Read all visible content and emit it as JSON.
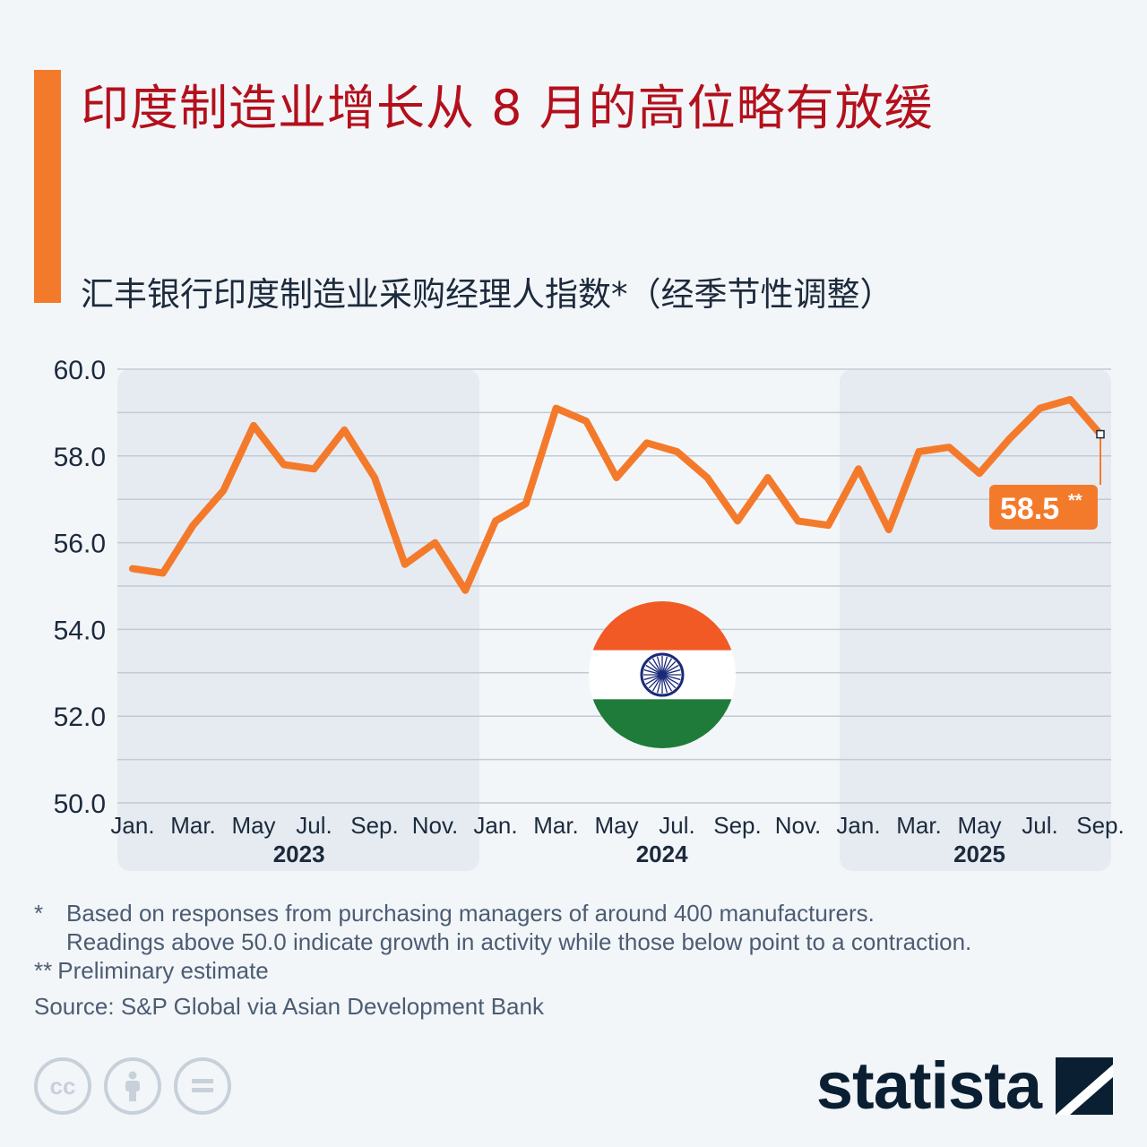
{
  "header": {
    "title": "印度制造业增长从 8 月的高位略有放缓",
    "subtitle": "汇丰银行印度制造业采购经理人指数*（经季节性调整）"
  },
  "chart_data": {
    "type": "line",
    "title": "印度制造业增长从 8 月的高位略有放缓",
    "subtitle": "汇丰银行印度制造业采购经理人指数*（经季节性调整）",
    "ylim": [
      50,
      60
    ],
    "y_ticks": [
      "50.0",
      "52.0",
      "54.0",
      "56.0",
      "58.0",
      "60.0"
    ],
    "grid": true,
    "x_tick_labels": [
      "Jan.",
      "Mar.",
      "May",
      "Jul.",
      "Sep.",
      "Nov.",
      "Jan.",
      "Mar.",
      "May",
      "Jul.",
      "Sep.",
      "Nov.",
      "Jan.",
      "Mar.",
      "May",
      "Jul.",
      "Sep."
    ],
    "years": [
      "2023",
      "2024",
      "2025"
    ],
    "x": [
      "2023-01",
      "2023-02",
      "2023-03",
      "2023-04",
      "2023-05",
      "2023-06",
      "2023-07",
      "2023-08",
      "2023-09",
      "2023-10",
      "2023-11",
      "2023-12",
      "2024-01",
      "2024-02",
      "2024-03",
      "2024-04",
      "2024-05",
      "2024-06",
      "2024-07",
      "2024-08",
      "2024-09",
      "2024-10",
      "2024-11",
      "2024-12",
      "2025-01",
      "2025-02",
      "2025-03",
      "2025-04",
      "2025-05",
      "2025-06",
      "2025-07",
      "2025-08",
      "2025-09"
    ],
    "series": [
      {
        "values": [
          55.4,
          55.3,
          56.4,
          57.2,
          58.7,
          57.8,
          57.7,
          58.6,
          57.5,
          55.5,
          56.0,
          54.9,
          56.5,
          56.9,
          59.1,
          58.8,
          57.5,
          58.3,
          58.1,
          57.5,
          56.5,
          57.5,
          56.5,
          56.4,
          57.7,
          56.3,
          58.1,
          58.2,
          57.6,
          58.4,
          59.1,
          59.3,
          58.5
        ]
      }
    ],
    "callout": {
      "value": "58.5",
      "suffix": "**"
    },
    "line_color": "#f47a2b",
    "grid_color": "#c2cad4",
    "band_color": "#e6ebf2"
  },
  "footnotes": {
    "f1_mark": "*",
    "f1_line1": "Based on responses from purchasing managers of around 400 manufacturers.",
    "f1_line2": "Readings above 50.0 indicate growth in activity while those below point to a contraction.",
    "f2_mark": "**",
    "f2_text": "Preliminary estimate",
    "source": "Source: S&P Global via Asian Development Bank"
  },
  "license": {
    "cc": "cc"
  },
  "brand": {
    "name": "statista"
  },
  "icons": [
    "cc-icon",
    "by-attribution-icon",
    "nd-equals-icon",
    "statista-logo-icon",
    "india-flag-icon",
    "ashoka-chakra-icon"
  ]
}
